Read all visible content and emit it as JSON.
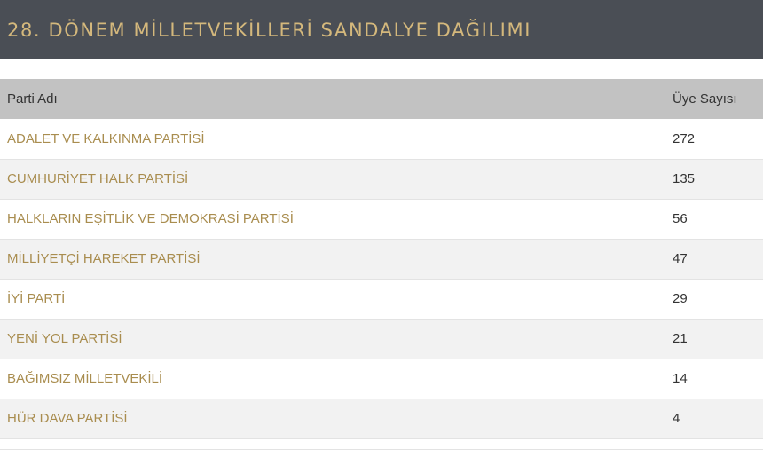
{
  "header": {
    "title": "28. DÖNEM MİLLETVEKİLLERİ SANDALYE DAĞILIMI"
  },
  "table": {
    "columns": [
      "Parti Adı",
      "Üye Sayısı"
    ],
    "rows": [
      {
        "party": "ADALET VE KALKINMA PARTİSİ",
        "seats": "272"
      },
      {
        "party": "CUMHURİYET HALK PARTİSİ",
        "seats": "135"
      },
      {
        "party": "HALKLARIN EŞİTLİK VE DEMOKRASİ PARTİSİ",
        "seats": "56"
      },
      {
        "party": "MİLLİYETÇİ HAREKET PARTİSİ",
        "seats": "47"
      },
      {
        "party": "İYİ PARTİ",
        "seats": "29"
      },
      {
        "party": "YENİ YOL PARTİSİ",
        "seats": "21"
      },
      {
        "party": "BAĞIMSIZ MİLLETVEKİLİ",
        "seats": "14"
      },
      {
        "party": "HÜR DAVA PARTİSİ",
        "seats": "4"
      }
    ]
  },
  "colors": {
    "header_bg": "#4a4e55",
    "title_text": "#d4b87c",
    "party_text": "#a98d4f",
    "table_head_bg": "#c2c2c2"
  }
}
